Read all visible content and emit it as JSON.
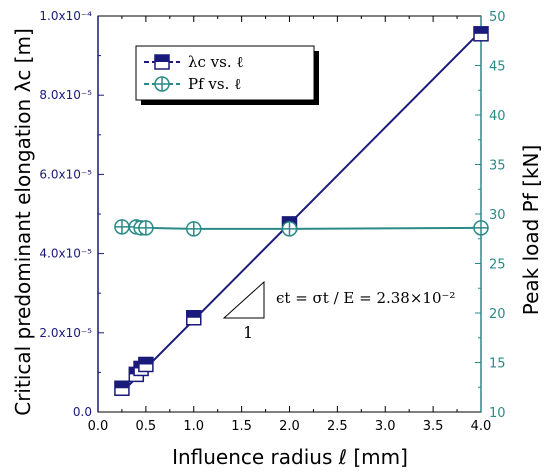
{
  "chart_data": {
    "type": "line",
    "xlabel": "Influence radius ℓ [mm]",
    "ylabel_left": "Critical predominant elongation λc [m]",
    "ylabel_right": "Peak load Pf [kN]",
    "x_ticks": [
      "0.0",
      "0.5",
      "1.0",
      "1.5",
      "2.0",
      "2.5",
      "3.0",
      "3.5",
      "4.0"
    ],
    "y_left_ticks": [
      "0.0",
      "2.0x10⁻⁵",
      "4.0x10⁻⁵",
      "6.0x10⁻⁵",
      "8.0x10⁻⁵",
      "1.0x10⁻⁴"
    ],
    "y_right_ticks": [
      "10",
      "15",
      "20",
      "25",
      "30",
      "35",
      "40",
      "45",
      "50"
    ],
    "xlim": [
      0,
      4
    ],
    "ylim_left": [
      0,
      0.0001
    ],
    "ylim_right": [
      10,
      50
    ],
    "legend_position": "top-left",
    "colors": {
      "left_series": "#1a1a7a",
      "right_series": "#2a8a88"
    },
    "series": [
      {
        "name": "λc vs. ℓ",
        "axis": "left",
        "marker": "half-filled-square",
        "x": [
          0.25,
          0.4,
          0.45,
          0.5,
          1.0,
          2.0,
          4.0
        ],
        "y": [
          6e-06,
          9.5e-06,
          1.1e-05,
          1.2e-05,
          2.38e-05,
          4.75e-05,
          9.55e-05
        ],
        "fit_line": {
          "x": [
            0.25,
            4.0
          ],
          "y": [
            5e-06,
            9.62e-05
          ]
        }
      },
      {
        "name": "Pf vs. ℓ",
        "axis": "right",
        "marker": "circle-plus",
        "x": [
          0.25,
          0.4,
          0.45,
          0.5,
          1.0,
          2.0,
          4.0
        ],
        "y": [
          28.7,
          28.7,
          28.6,
          28.6,
          28.5,
          28.5,
          28.6
        ]
      }
    ],
    "annotation": {
      "slope_label": "1",
      "formula": "ϵt = σt / E = 2.38×10⁻²"
    }
  }
}
